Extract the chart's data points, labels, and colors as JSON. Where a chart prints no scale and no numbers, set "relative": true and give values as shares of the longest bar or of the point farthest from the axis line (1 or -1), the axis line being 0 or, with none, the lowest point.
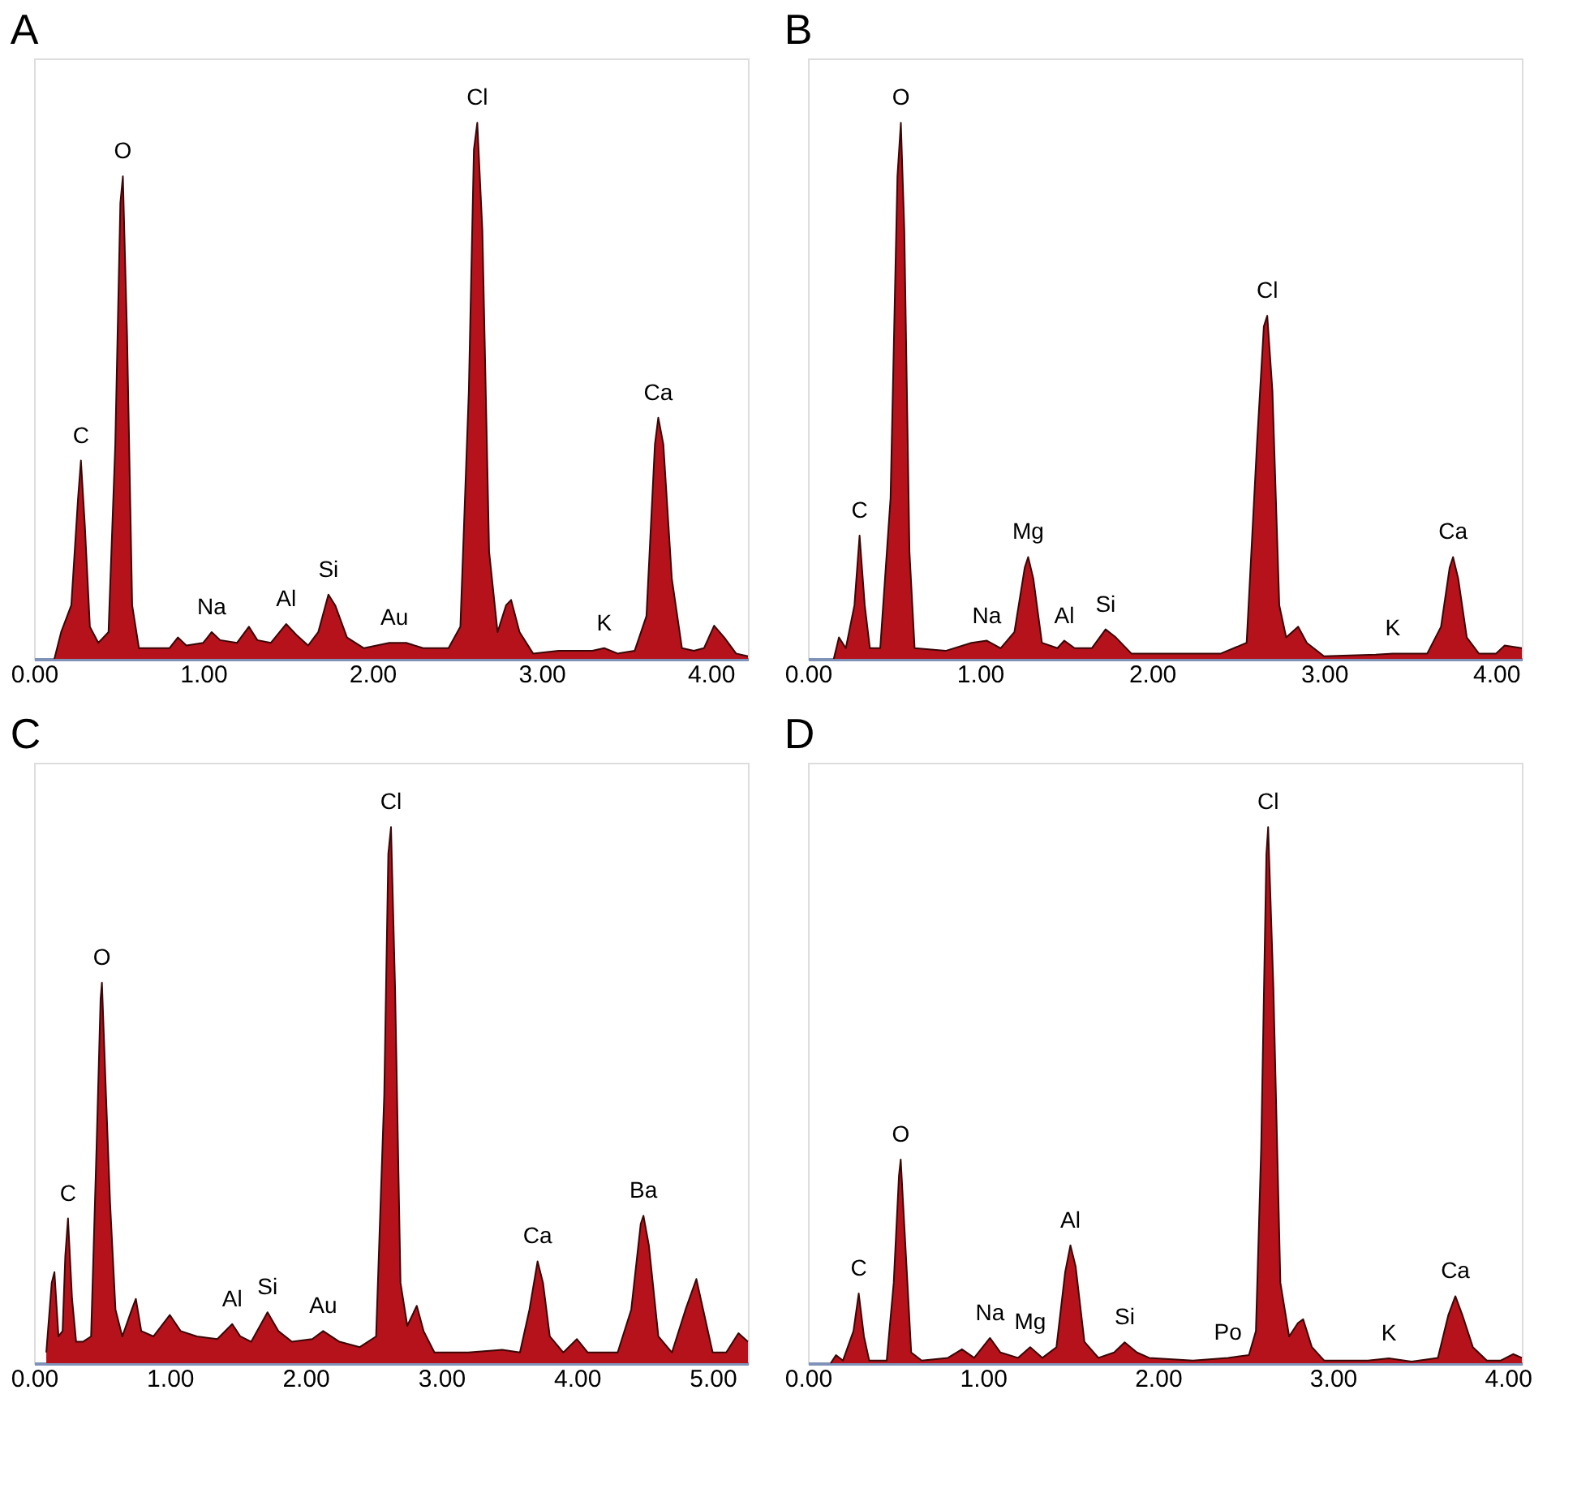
{
  "chart_data": [
    {
      "type": "area",
      "title": "A",
      "relative": true,
      "color": "#b5121b",
      "xlim": [
        0,
        4.22
      ],
      "xticks": [
        {
          "value": 0,
          "label": "0.00"
        },
        {
          "value": 1,
          "label": "1.00"
        },
        {
          "value": 2,
          "label": "2.00"
        },
        {
          "value": 3,
          "label": "3.00"
        },
        {
          "value": 4,
          "label": "4.00"
        }
      ],
      "x": [
        0.12,
        0.16,
        0.22,
        0.26,
        0.277,
        0.3,
        0.33,
        0.38,
        0.44,
        0.48,
        0.51,
        0.525,
        0.55,
        0.58,
        0.62,
        0.8,
        0.85,
        0.9,
        1.0,
        1.05,
        1.1,
        1.2,
        1.27,
        1.32,
        1.4,
        1.49,
        1.55,
        1.62,
        1.68,
        1.74,
        1.78,
        1.85,
        1.95,
        2.1,
        2.2,
        2.3,
        2.45,
        2.52,
        2.57,
        2.6,
        2.62,
        2.65,
        2.69,
        2.74,
        2.79,
        2.82,
        2.87,
        2.95,
        3.1,
        3.3,
        3.37,
        3.45,
        3.55,
        3.62,
        3.67,
        3.69,
        3.72,
        3.77,
        3.83,
        3.9,
        3.96,
        4.02,
        4.08,
        4.15,
        4.22
      ],
      "values": [
        0,
        0.05,
        0.1,
        0.3,
        0.37,
        0.25,
        0.06,
        0.03,
        0.05,
        0.4,
        0.85,
        0.9,
        0.6,
        0.1,
        0.02,
        0.02,
        0.04,
        0.025,
        0.03,
        0.05,
        0.035,
        0.03,
        0.06,
        0.035,
        0.03,
        0.065,
        0.045,
        0.025,
        0.05,
        0.12,
        0.1,
        0.04,
        0.02,
        0.03,
        0.03,
        0.02,
        0.02,
        0.06,
        0.5,
        0.95,
        1.0,
        0.8,
        0.2,
        0.05,
        0.1,
        0.11,
        0.05,
        0.01,
        0.015,
        0.015,
        0.02,
        0.01,
        0.015,
        0.08,
        0.4,
        0.45,
        0.4,
        0.15,
        0.02,
        0.015,
        0.02,
        0.062,
        0.04,
        0.01,
        0.005
      ],
      "annotations": [
        {
          "text": "C",
          "x": 0.277,
          "y": 0.37
        },
        {
          "text": "O",
          "x": 0.525,
          "y": 0.9
        },
        {
          "text": "Na",
          "x": 1.05,
          "y": 0.05
        },
        {
          "text": "Al",
          "x": 1.49,
          "y": 0.065
        },
        {
          "text": "Si",
          "x": 1.74,
          "y": 0.12
        },
        {
          "text": "Au",
          "x": 2.13,
          "y": 0.03
        },
        {
          "text": "Cl",
          "x": 2.62,
          "y": 1.0
        },
        {
          "text": "K",
          "x": 3.37,
          "y": 0.02
        },
        {
          "text": "Ca",
          "x": 3.69,
          "y": 0.45
        }
      ]
    },
    {
      "type": "area",
      "title": "B",
      "relative": true,
      "color": "#b5121b",
      "xlim": [
        0,
        4.15
      ],
      "xticks": [
        {
          "value": 0,
          "label": "0.00"
        },
        {
          "value": 1,
          "label": "1.00"
        },
        {
          "value": 2,
          "label": "2.00"
        },
        {
          "value": 3,
          "label": "3.00"
        },
        {
          "value": 4,
          "label": "4.00"
        }
      ],
      "x": [
        0.15,
        0.18,
        0.22,
        0.27,
        0.3,
        0.33,
        0.36,
        0.42,
        0.48,
        0.52,
        0.54,
        0.56,
        0.59,
        0.62,
        0.8,
        0.95,
        1.04,
        1.12,
        1.2,
        1.26,
        1.28,
        1.31,
        1.36,
        1.45,
        1.49,
        1.55,
        1.65,
        1.73,
        1.79,
        1.88,
        2.1,
        2.4,
        2.55,
        2.61,
        2.65,
        2.67,
        2.7,
        2.74,
        2.78,
        2.85,
        2.9,
        3.0,
        3.3,
        3.4,
        3.6,
        3.68,
        3.73,
        3.75,
        3.78,
        3.83,
        3.9,
        4.0,
        4.05,
        4.15
      ],
      "values": [
        0,
        0.04,
        0.02,
        0.1,
        0.23,
        0.1,
        0.02,
        0.02,
        0.3,
        0.9,
        1.0,
        0.8,
        0.2,
        0.02,
        0.015,
        0.03,
        0.034,
        0.02,
        0.05,
        0.17,
        0.19,
        0.15,
        0.03,
        0.02,
        0.034,
        0.02,
        0.02,
        0.055,
        0.04,
        0.01,
        0.01,
        0.01,
        0.03,
        0.4,
        0.62,
        0.64,
        0.5,
        0.1,
        0.04,
        0.06,
        0.03,
        0.005,
        0.008,
        0.01,
        0.01,
        0.06,
        0.17,
        0.19,
        0.15,
        0.04,
        0.01,
        0.01,
        0.025,
        0.02
      ],
      "annotations": [
        {
          "text": "C",
          "x": 0.3,
          "y": 0.23
        },
        {
          "text": "O",
          "x": 0.54,
          "y": 1.0
        },
        {
          "text": "Na",
          "x": 1.04,
          "y": 0.034
        },
        {
          "text": "Mg",
          "x": 1.28,
          "y": 0.19
        },
        {
          "text": "Al",
          "x": 1.49,
          "y": 0.034
        },
        {
          "text": "Si",
          "x": 1.73,
          "y": 0.055
        },
        {
          "text": "Cl",
          "x": 2.67,
          "y": 0.64
        },
        {
          "text": "K",
          "x": 3.4,
          "y": 0.01
        },
        {
          "text": "Ca",
          "x": 3.75,
          "y": 0.19
        }
      ]
    },
    {
      "type": "area",
      "title": "C",
      "relative": true,
      "color": "#b5121b",
      "xlim": [
        0,
        5.26
      ],
      "xticks": [
        {
          "value": 0,
          "label": "0.00"
        },
        {
          "value": 1,
          "label": "1.00"
        },
        {
          "value": 2,
          "label": "2.00"
        },
        {
          "value": 3,
          "label": "3.00"
        },
        {
          "value": 4,
          "label": "4.00"
        },
        {
          "value": 5,
          "label": "5.00"
        }
      ],
      "x": [
        0.09,
        0.13,
        0.15,
        0.18,
        0.21,
        0.23,
        0.25,
        0.28,
        0.31,
        0.36,
        0.42,
        0.46,
        0.49,
        0.5,
        0.53,
        0.56,
        0.6,
        0.65,
        0.72,
        0.75,
        0.79,
        0.88,
        1.0,
        1.08,
        1.2,
        1.35,
        1.46,
        1.52,
        1.6,
        1.72,
        1.8,
        1.9,
        2.05,
        2.13,
        2.25,
        2.4,
        2.52,
        2.58,
        2.61,
        2.63,
        2.66,
        2.7,
        2.75,
        2.82,
        2.87,
        2.95,
        3.2,
        3.45,
        3.58,
        3.65,
        3.71,
        3.75,
        3.8,
        3.9,
        4.0,
        4.08,
        4.3,
        4.4,
        4.47,
        4.49,
        4.53,
        4.6,
        4.7,
        4.8,
        4.88,
        4.93,
        5.0,
        5.1,
        5.19,
        5.26
      ],
      "values": [
        0.02,
        0.15,
        0.17,
        0.05,
        0.06,
        0.2,
        0.27,
        0.12,
        0.04,
        0.04,
        0.05,
        0.4,
        0.68,
        0.71,
        0.5,
        0.3,
        0.1,
        0.05,
        0.1,
        0.12,
        0.06,
        0.05,
        0.09,
        0.06,
        0.05,
        0.045,
        0.073,
        0.05,
        0.04,
        0.095,
        0.06,
        0.04,
        0.045,
        0.06,
        0.04,
        0.03,
        0.05,
        0.5,
        0.95,
        1.0,
        0.7,
        0.15,
        0.07,
        0.107,
        0.06,
        0.02,
        0.02,
        0.025,
        0.02,
        0.1,
        0.19,
        0.15,
        0.05,
        0.02,
        0.045,
        0.02,
        0.02,
        0.1,
        0.26,
        0.275,
        0.22,
        0.05,
        0.02,
        0.1,
        0.157,
        0.1,
        0.02,
        0.02,
        0.056,
        0.04
      ],
      "annotations": [
        {
          "text": "C",
          "x": 0.25,
          "y": 0.27
        },
        {
          "text": "O",
          "x": 0.5,
          "y": 0.71
        },
        {
          "text": "Al",
          "x": 1.46,
          "y": 0.073
        },
        {
          "text": "Si",
          "x": 1.72,
          "y": 0.095
        },
        {
          "text": "Au",
          "x": 2.13,
          "y": 0.06
        },
        {
          "text": "Cl",
          "x": 2.63,
          "y": 1.0
        },
        {
          "text": "Ca",
          "x": 3.71,
          "y": 0.19
        },
        {
          "text": "Ba",
          "x": 4.49,
          "y": 0.275
        }
      ]
    },
    {
      "type": "area",
      "title": "D",
      "relative": true,
      "color": "#b5121b",
      "xlim": [
        0,
        4.08
      ],
      "xticks": [
        {
          "value": 0,
          "label": "0.00"
        },
        {
          "value": 1,
          "label": "1.00"
        },
        {
          "value": 2,
          "label": "2.00"
        },
        {
          "value": 3,
          "label": "3.00"
        },
        {
          "value": 4,
          "label": "4.00"
        }
      ],
      "x": [
        0.13,
        0.16,
        0.2,
        0.26,
        0.29,
        0.32,
        0.35,
        0.45,
        0.49,
        0.52,
        0.53,
        0.56,
        0.59,
        0.65,
        0.8,
        0.88,
        0.95,
        1.04,
        1.1,
        1.2,
        1.27,
        1.34,
        1.42,
        1.47,
        1.5,
        1.53,
        1.58,
        1.66,
        1.75,
        1.81,
        1.88,
        1.95,
        2.2,
        2.4,
        2.52,
        2.56,
        2.59,
        2.62,
        2.63,
        2.66,
        2.7,
        2.75,
        2.8,
        2.83,
        2.88,
        2.95,
        3.2,
        3.32,
        3.45,
        3.6,
        3.66,
        3.7,
        3.74,
        3.8,
        3.88,
        3.96,
        4.03,
        4.08
      ],
      "values": [
        0,
        0.015,
        0.005,
        0.06,
        0.13,
        0.05,
        0.005,
        0.005,
        0.15,
        0.35,
        0.38,
        0.2,
        0.02,
        0.005,
        0.01,
        0.026,
        0.01,
        0.047,
        0.02,
        0.01,
        0.03,
        0.01,
        0.03,
        0.17,
        0.22,
        0.18,
        0.04,
        0.01,
        0.02,
        0.039,
        0.02,
        0.01,
        0.005,
        0.01,
        0.015,
        0.06,
        0.4,
        0.95,
        1.0,
        0.7,
        0.15,
        0.05,
        0.075,
        0.082,
        0.03,
        0.005,
        0.005,
        0.009,
        0.003,
        0.01,
        0.09,
        0.125,
        0.09,
        0.03,
        0.005,
        0.005,
        0.017,
        0.01
      ],
      "annotations": [
        {
          "text": "C",
          "x": 0.29,
          "y": 0.13
        },
        {
          "text": "O",
          "x": 0.53,
          "y": 0.38
        },
        {
          "text": "Na",
          "x": 1.04,
          "y": 0.047
        },
        {
          "text": "Mg",
          "x": 1.27,
          "y": 0.03
        },
        {
          "text": "Al",
          "x": 1.5,
          "y": 0.22
        },
        {
          "text": "Si",
          "x": 1.81,
          "y": 0.039
        },
        {
          "text": "Po",
          "x": 2.4,
          "y": 0.01
        },
        {
          "text": "Cl",
          "x": 2.63,
          "y": 1.0
        },
        {
          "text": "K",
          "x": 3.32,
          "y": 0.009
        },
        {
          "text": "Ca",
          "x": 3.7,
          "y": 0.125
        }
      ]
    }
  ]
}
